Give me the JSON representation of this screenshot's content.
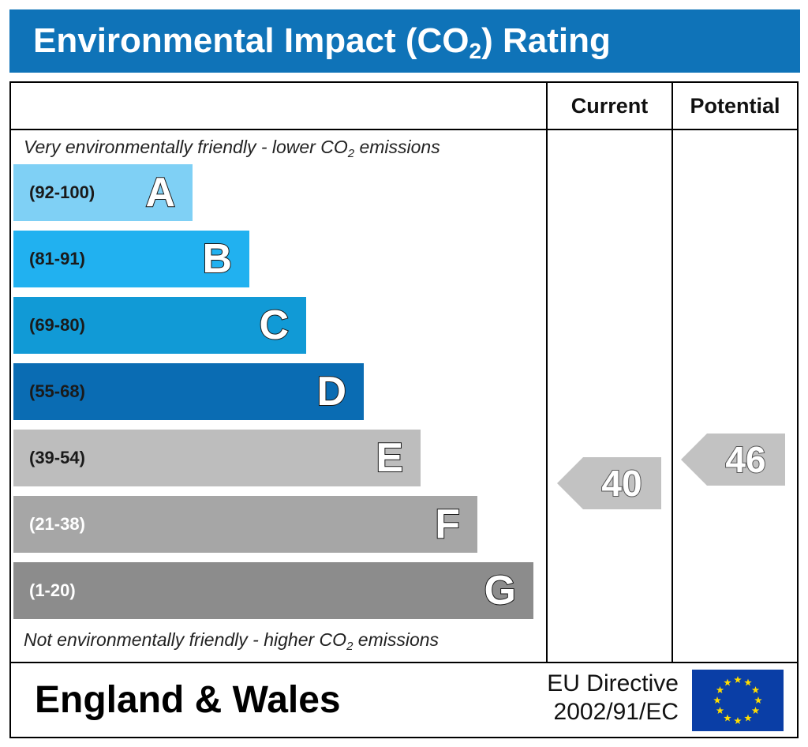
{
  "title": {
    "main": "Environmental Impact (CO",
    "sub": "2",
    "tail": ") Rating"
  },
  "headers": {
    "current": "Current",
    "potential": "Potential"
  },
  "notes": {
    "top_main": "Very environmentally friendly - lower CO",
    "top_sub": "2",
    "top_tail": " emissions",
    "bottom_main": "Not environmentally friendly - higher CO",
    "bottom_sub": "2",
    "bottom_tail": " emissions"
  },
  "chart_data": {
    "type": "bar",
    "categories": [
      "A",
      "B",
      "C",
      "D",
      "E",
      "F",
      "G"
    ],
    "ranges": [
      "(92-100)",
      "(81-91)",
      "(69-80)",
      "(55-68)",
      "(39-54)",
      "(21-38)",
      "(1-20)"
    ],
    "colors": [
      "#7fd0f5",
      "#21b1f0",
      "#119ad6",
      "#0a6cb3",
      "#bdbdbd",
      "#a6a6a6",
      "#8c8c8c"
    ],
    "range_text_colors": [
      "#1a1a1a",
      "#1a1a1a",
      "#1a1a1a",
      "#1a1a1a",
      "#1a1a1a",
      "#ffffff",
      "#ffffff"
    ],
    "current": 40,
    "potential": 46,
    "arrow_color": "#c2c2c2"
  },
  "footer": {
    "region": "England & Wales",
    "directive_line1": "EU Directive",
    "directive_line2": "2002/91/EC",
    "flag_icon": "eu-flag-icon",
    "flag_color": "#0a3ea6",
    "star_color": "#ffdd00"
  }
}
